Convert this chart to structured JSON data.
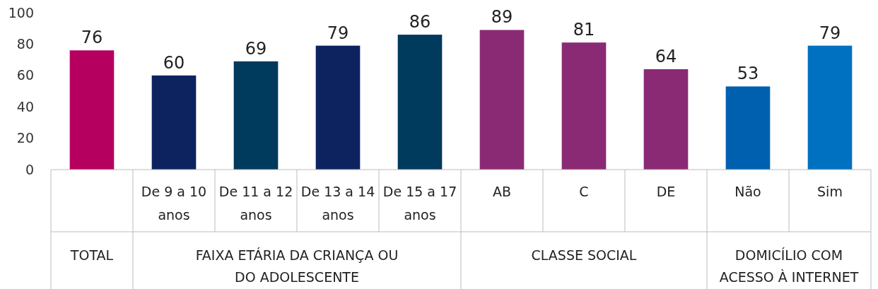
{
  "chart_data": {
    "type": "bar",
    "categories": [
      null,
      "De 9 a 10 anos",
      "De 11 a 12 anos",
      "De 13 a 14 anos",
      "De 15 a 17 anos",
      "AB",
      "C",
      "DE",
      "Não",
      "Sim"
    ],
    "values": [
      76,
      60,
      69,
      79,
      86,
      89,
      81,
      64,
      53,
      79
    ],
    "colors": [
      "#b5005f",
      "#0d2360",
      "#003a5c",
      "#0d2360",
      "#003a5c",
      "#8a2a75",
      "#8a2a75",
      "#8a2a75",
      "#0060b0",
      "#0070c0"
    ],
    "ylim": [
      0,
      100
    ],
    "yticks": [
      0,
      20,
      40,
      60,
      80,
      100
    ],
    "grid": false,
    "data_labels": true,
    "annotations": [
      "TOTAL",
      "FAIXA ETÁRIA DA CRIANÇA OU DO ADOLESCENTE",
      "CLASSE SOCIAL",
      "DOMICÍLIO COM ACESSO À INTERNET"
    ]
  }
}
